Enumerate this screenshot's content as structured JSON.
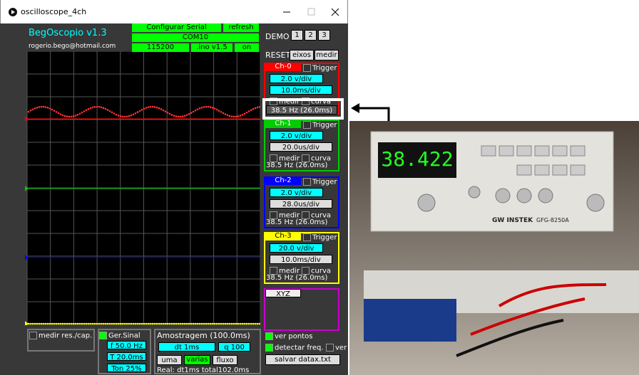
{
  "window": {
    "title": "oscilloscope_4ch"
  },
  "header": {
    "app_name": "BegOscopio v1.3",
    "email": "rogerio.bego@hotmail.com",
    "serial": "Configurar Serial",
    "refresh": "refresh",
    "port": "COM10",
    "baud": "115200",
    "ino": ".ino v1.5",
    "status": "on",
    "demo": "DEMO",
    "demo_buttons": [
      "1",
      "2",
      "3"
    ],
    "reset": "RESET",
    "axes": "eixos",
    "measure": "medir"
  },
  "channels": [
    {
      "name": "Ch-0",
      "trigger": "Trigger",
      "vdiv": "2.0 v/div",
      "tdiv": "10.0ms/div",
      "measure": "medir",
      "curve": "curva",
      "freq": "38.5 Hz (26.0ms)"
    },
    {
      "name": "Ch-1",
      "trigger": "Trigger",
      "vdiv": "2.0 v/div",
      "tdiv": "20.0us/div",
      "measure": "medir",
      "curve": "curva",
      "freq": "38.5 Hz (26.0ms)"
    },
    {
      "name": "Ch-2",
      "trigger": "Trigger",
      "vdiv": "2.0 v/div",
      "tdiv": "28.0us/div",
      "measure": "medir",
      "curve": "curva",
      "freq": "38.5 Hz (26.0ms)"
    },
    {
      "name": "Ch-3",
      "trigger": "Trigger",
      "vdiv": "20.0 v/div",
      "tdiv": "10.0ms/div",
      "measure": "medir",
      "curve": "curva",
      "freq": "38.5 Hz (26.0ms)"
    }
  ],
  "xyz": "XYZ",
  "footer": {
    "res_cap": "medir res./cap.",
    "gen": "Ger.Sinal",
    "freq": "f 50.0 Hz",
    "period": "T 20.0ms",
    "ton": "Ton 25%",
    "sampling": "Amostragem (100.0ms)",
    "dt": "dt 1ms",
    "q": "q 100",
    "once": "uma",
    "many": "varias",
    "flow": "fluxo",
    "real": "Real: dt1ms  total102.0ms",
    "points": "ver pontos",
    "detect": "detectar freq.",
    "ver": "ver",
    "save": "salvar datax.txt"
  },
  "photo": {
    "display": "38.422",
    "brand": "GW INSTEK",
    "model": "GFG-8250A"
  }
}
